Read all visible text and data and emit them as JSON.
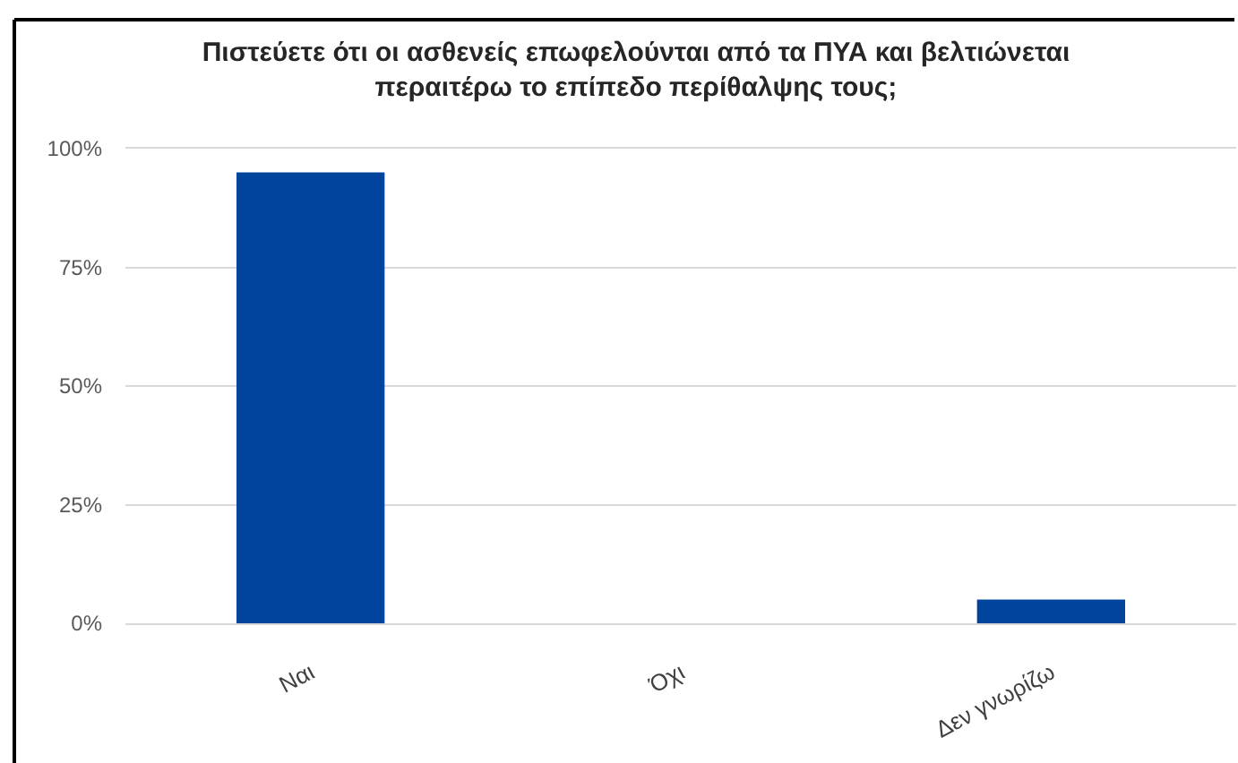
{
  "chart_data": {
    "type": "bar",
    "title": "Πιστεύετε ότι οι ασθενείς επωφελούνται από τα ΠΥΑ και βελτιώνεται περαιτέρω το επίπεδο περίθαλψης τους;",
    "categories": [
      "Ναι",
      "Όχι",
      "Δεν γνωρίζω"
    ],
    "values": [
      95,
      0,
      5
    ],
    "color": "#00449e",
    "ylim": [
      0,
      100
    ],
    "yticks": [
      {
        "value": 0,
        "label": "0%"
      },
      {
        "value": 25,
        "label": "25%"
      },
      {
        "value": 50,
        "label": "50%"
      },
      {
        "value": 75,
        "label": "75%"
      },
      {
        "value": 100,
        "label": "100%"
      }
    ],
    "grid": "y"
  }
}
